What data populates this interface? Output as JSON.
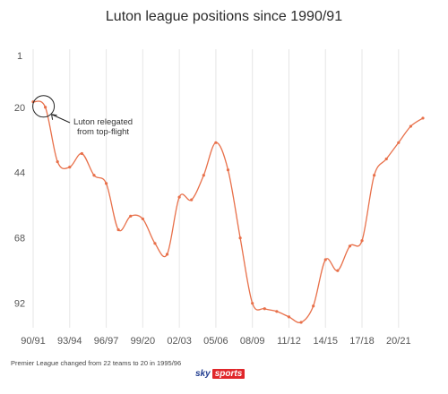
{
  "chart_data": {
    "type": "line",
    "title": "Luton league positions since 1990/91",
    "xlabel": "",
    "ylabel": "",
    "y_axis": "inverted",
    "ylim": [
      1,
      100
    ],
    "yticks": [
      1,
      20,
      44,
      68,
      92
    ],
    "xtick_labels": [
      "90/91",
      "93/94",
      "96/97",
      "99/20",
      "02/03",
      "05/06",
      "08/09",
      "11/12",
      "14/15",
      "17/18",
      "20/21"
    ],
    "grid": "vertical",
    "series": [
      {
        "color": "#e8704a",
        "x": [
          "90/91",
          "91/92",
          "92/93",
          "93/94",
          "94/95",
          "95/96",
          "96/97",
          "97/98",
          "98/99",
          "99/00",
          "00/01",
          "01/02",
          "02/03",
          "03/04",
          "04/05",
          "05/06",
          "06/07",
          "07/08",
          "08/09",
          "09/10",
          "10/11",
          "11/12",
          "12/13",
          "13/14",
          "14/15",
          "15/16",
          "16/17",
          "17/18",
          "18/19",
          "19/20",
          "20/21",
          "21/22",
          "22/23"
        ],
        "values": [
          18,
          20,
          40,
          42,
          37,
          45,
          48,
          65,
          60,
          61,
          70,
          74,
          53,
          54,
          45,
          33,
          43,
          68,
          92,
          94,
          95,
          97,
          99,
          93,
          76,
          80,
          71,
          69,
          45,
          39,
          33,
          27,
          24
        ]
      }
    ],
    "annotations": [
      {
        "text_lines": [
          "Luton relegated",
          "from top-flight"
        ],
        "x": "91/92",
        "y": 20
      }
    ]
  },
  "footnote": "Premier League changed from 22 teams to 20 in 1995/96",
  "brand": {
    "sky": "sky",
    "sports": "sports"
  }
}
